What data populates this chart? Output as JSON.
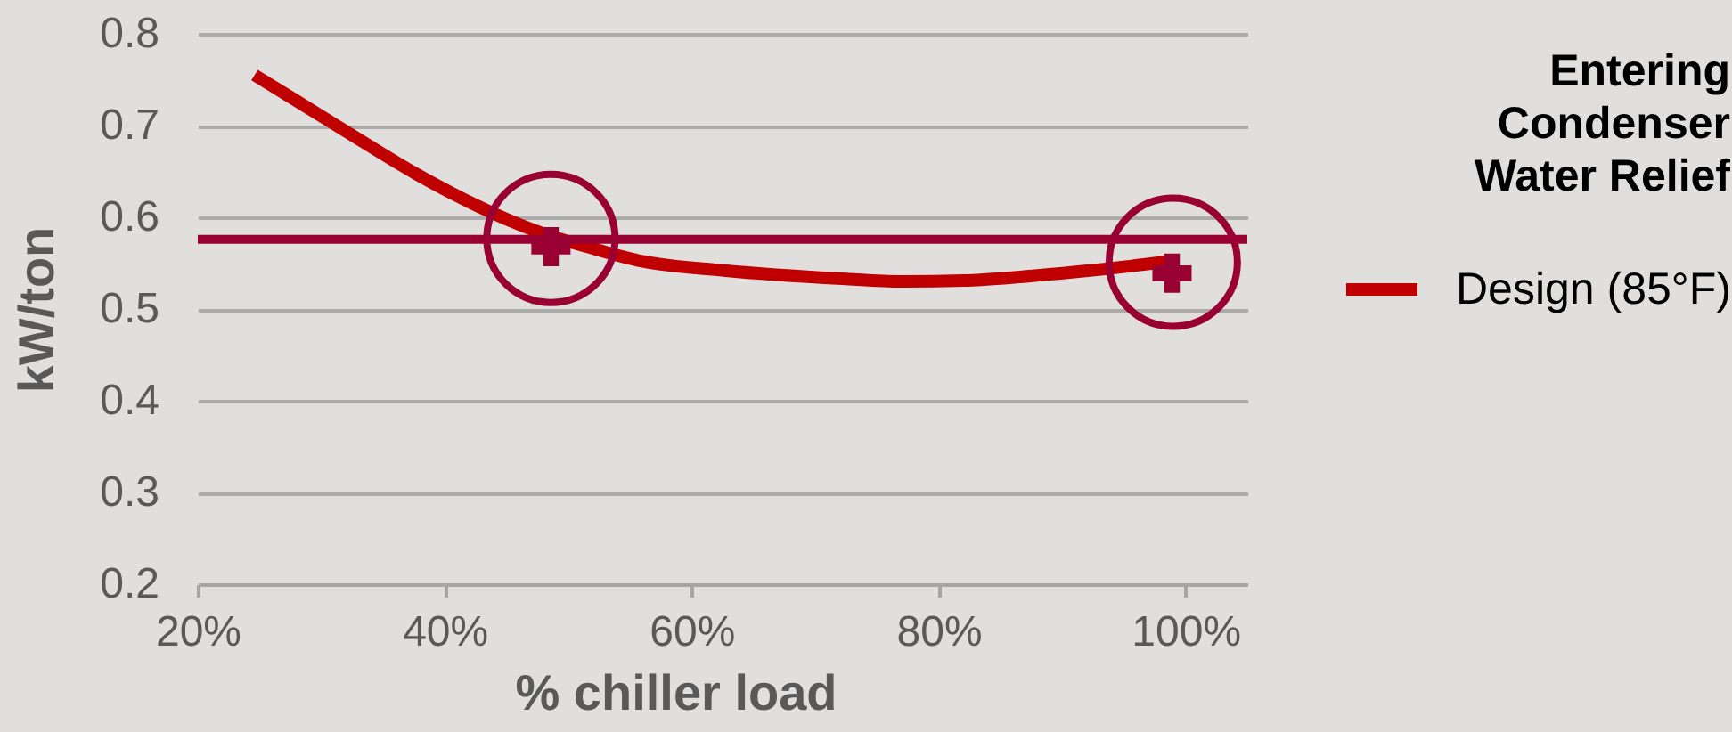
{
  "chart_data": {
    "type": "line",
    "legend_title": "Entering Condenser Water Relief",
    "xlabel": "% chiller load",
    "ylabel": "kW/ton",
    "xlim": [
      20,
      105
    ],
    "xticks": [
      {
        "value": 20,
        "label": "20%"
      },
      {
        "value": 40,
        "label": "40%"
      },
      {
        "value": 60,
        "label": "60%"
      },
      {
        "value": 80,
        "label": "80%"
      },
      {
        "value": 100,
        "label": "100%"
      }
    ],
    "ylim": [
      0.2,
      0.8
    ],
    "yticks": [
      0.2,
      0.3,
      0.4,
      0.5,
      0.6,
      0.7,
      0.8
    ],
    "grid": "y",
    "legend": "right",
    "series": [
      {
        "name": "Design (85°F)",
        "color": "#c00000",
        "x": [
          24.6,
          28,
          32.8,
          37.6,
          42.4,
          47.2,
          52,
          56,
          62.6,
          72.2,
          77,
          82,
          86.6,
          91.5,
          96.3,
          98.7
        ],
        "values": [
          0.755,
          0.727,
          0.687,
          0.648,
          0.614,
          0.586,
          0.566,
          0.552,
          0.542,
          0.533,
          0.53,
          0.531,
          0.535,
          0.541,
          0.548,
          0.552
        ]
      },
      {
        "type": "scatter",
        "marker": "circle",
        "color": "#990033",
        "x": [
          48.6,
          99.0
        ],
        "values": [
          0.577,
          0.551
        ]
      },
      {
        "type": "scatter",
        "marker": "cross",
        "color": "#990033",
        "x": [
          48.6,
          98.9
        ],
        "values": [
          0.568,
          0.539
        ]
      }
    ],
    "ref_lines": [
      {
        "axis": "y",
        "value": 0.576,
        "color": "#990033"
      }
    ]
  }
}
